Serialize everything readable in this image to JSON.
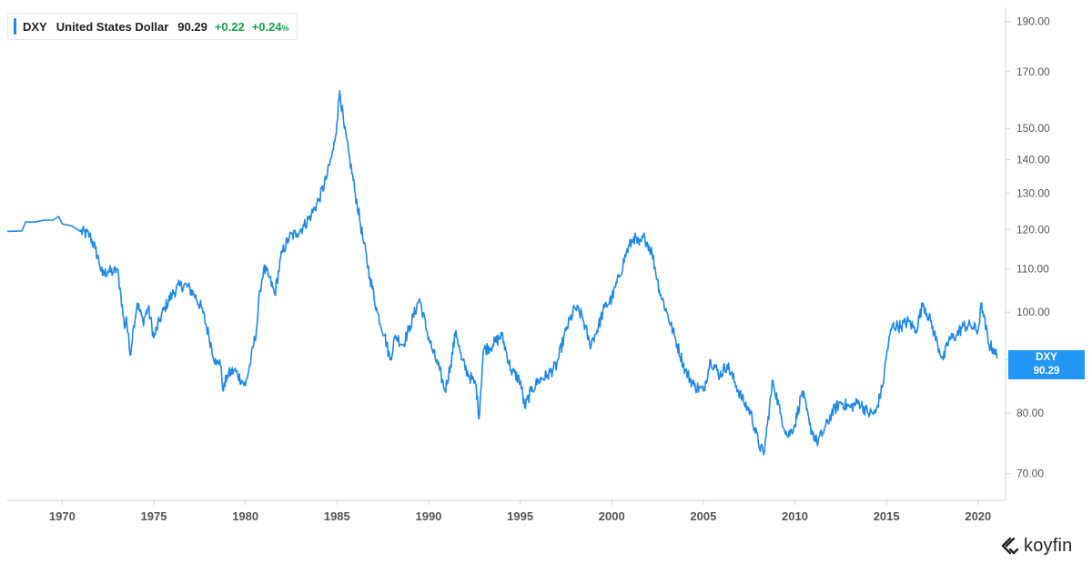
{
  "legend": {
    "ticker": "DXY",
    "name": "United States Dollar",
    "price": "90.29",
    "change": "+0.22",
    "change_pct": "+0.24",
    "pct_sign": "%"
  },
  "price_tag": {
    "ticker": "DXY",
    "value": "90.29"
  },
  "brand": {
    "name": "koyfin"
  },
  "colors": {
    "line": "#1e88e5",
    "positive": "#16a34a",
    "tag_bg": "#2196f3",
    "axis_text": "#555555",
    "axis_line": "#cfd3d8"
  },
  "chart_data": {
    "type": "line",
    "title": "",
    "xlabel": "",
    "ylabel": "",
    "y_scale": "log",
    "xlim": [
      1967,
      2021.5
    ],
    "ylim": [
      66,
      196
    ],
    "y_ticks": [
      70,
      80,
      90,
      100,
      110,
      120,
      130,
      140,
      150,
      170,
      190
    ],
    "y_tick_labels": [
      "70.00",
      "80.00",
      "90.00",
      "100.00",
      "110.00",
      "120.00",
      "130.00",
      "140.00",
      "150.00",
      "170.00",
      "190.00"
    ],
    "x_ticks": [
      1970,
      1975,
      1980,
      1985,
      1990,
      1995,
      2000,
      2005,
      2010,
      2015,
      2020
    ],
    "x_tick_labels": [
      "1970",
      "1975",
      "1980",
      "1985",
      "1990",
      "1995",
      "2000",
      "2005",
      "2010",
      "2015",
      "2020"
    ],
    "grid": false,
    "legend_position": "top-left",
    "series": [
      {
        "name": "DXY",
        "x": [
          1967.0,
          1967.8,
          1968.0,
          1968.5,
          1969.0,
          1969.5,
          1969.8,
          1970.0,
          1970.5,
          1971.0,
          1971.5,
          1971.8,
          1972.0,
          1972.2,
          1972.5,
          1972.8,
          1973.0,
          1973.2,
          1973.4,
          1973.5,
          1973.7,
          1973.9,
          1974.1,
          1974.4,
          1974.7,
          1975.0,
          1975.3,
          1975.6,
          1976.0,
          1976.4,
          1976.8,
          1977.2,
          1977.6,
          1978.0,
          1978.4,
          1978.6,
          1978.8,
          1979.0,
          1979.4,
          1979.8,
          1980.0,
          1980.3,
          1980.6,
          1980.8,
          1981.0,
          1981.3,
          1981.6,
          1982.0,
          1982.4,
          1982.8,
          1983.2,
          1983.6,
          1984.0,
          1984.4,
          1984.8,
          1985.0,
          1985.15,
          1985.4,
          1985.7,
          1986.0,
          1986.4,
          1986.8,
          1987.2,
          1987.6,
          1987.9,
          1988.2,
          1988.6,
          1989.0,
          1989.5,
          1989.9,
          1990.2,
          1990.6,
          1990.9,
          1991.2,
          1991.5,
          1991.8,
          1992.2,
          1992.6,
          1992.75,
          1993.0,
          1993.5,
          1994.0,
          1994.5,
          1995.0,
          1995.25,
          1995.6,
          1996.0,
          1996.5,
          1997.0,
          1997.5,
          1998.0,
          1998.4,
          1998.8,
          1999.2,
          1999.6,
          2000.0,
          2000.4,
          2000.8,
          2001.2,
          2001.5,
          2001.8,
          2002.2,
          2002.6,
          2003.0,
          2003.5,
          2004.0,
          2004.5,
          2005.0,
          2005.4,
          2005.9,
          2006.3,
          2006.8,
          2007.2,
          2007.6,
          2008.0,
          2008.3,
          2008.5,
          2008.8,
          2009.2,
          2009.6,
          2010.0,
          2010.4,
          2010.8,
          2011.2,
          2011.6,
          2012.0,
          2012.5,
          2013.0,
          2013.5,
          2014.0,
          2014.4,
          2014.8,
          2015.0,
          2015.3,
          2015.8,
          2016.2,
          2016.6,
          2017.0,
          2017.4,
          2017.8,
          2018.1,
          2018.4,
          2018.8,
          2019.2,
          2019.6,
          2020.0,
          2020.2,
          2020.3,
          2020.6,
          2020.9,
          2021.05
        ],
        "y": [
          119.5,
          119.6,
          122.0,
          122.0,
          122.5,
          122.5,
          123.5,
          121.5,
          121.0,
          119.5,
          118.5,
          115.0,
          112.0,
          108.5,
          109.5,
          109.2,
          110.0,
          104.0,
          96.5,
          99.0,
          91.0,
          97.0,
          102.0,
          98.0,
          101.0,
          94.5,
          98.0,
          101.0,
          104.0,
          106.0,
          106.0,
          104.0,
          101.0,
          95.0,
          89.0,
          90.0,
          84.0,
          87.0,
          88.0,
          86.0,
          85.0,
          90.0,
          96.0,
          105.0,
          110.0,
          108.0,
          104.0,
          114.0,
          118.0,
          119.0,
          121.0,
          124.0,
          128.0,
          134.0,
          143.0,
          152.0,
          163.0,
          150.0,
          140.0,
          130.0,
          118.0,
          108.0,
          100.0,
          95.0,
          90.0,
          95.0,
          93.0,
          97.0,
          103.0,
          96.0,
          92.0,
          88.0,
          84.0,
          89.0,
          96.0,
          90.0,
          87.0,
          85.0,
          79.0,
          92.0,
          93.0,
          95.0,
          88.0,
          86.0,
          81.0,
          84.0,
          86.0,
          87.0,
          89.0,
          96.0,
          101.0,
          99.0,
          93.0,
          96.0,
          101.0,
          103.0,
          108.0,
          114.0,
          118.0,
          116.0,
          118.0,
          114.0,
          105.0,
          100.0,
          94.0,
          88.0,
          85.0,
          84.0,
          90.0,
          87.0,
          89.0,
          85.0,
          82.0,
          80.0,
          75.0,
          73.0,
          78.0,
          86.0,
          80.0,
          76.0,
          78.0,
          84.0,
          78.0,
          75.0,
          77.0,
          80.0,
          82.0,
          81.0,
          82.0,
          80.0,
          80.0,
          85.0,
          91.0,
          97.0,
          97.0,
          98.0,
          96.0,
          102.0,
          98.0,
          93.0,
          90.0,
          94.0,
          95.0,
          97.0,
          97.0,
          96.0,
          102.0,
          99.0,
          93.0,
          92.0,
          90.29
        ]
      }
    ]
  }
}
